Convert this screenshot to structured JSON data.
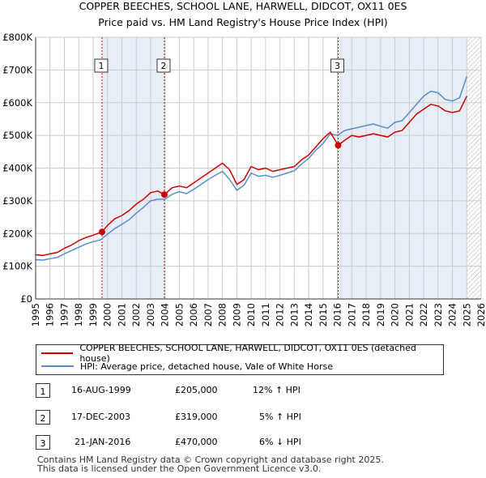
{
  "title_line1": "COPPER BEECHES, SCHOOL LANE, HARWELL, DIDCOT, OX11 0ES",
  "title_line2": "Price paid vs. HM Land Registry's House Price Index (HPI)",
  "colors": {
    "price_line": "#cc0000",
    "hpi_line": "#5b8ccc",
    "shade": "#e8eef8",
    "grid": "#cccccc",
    "marker_line": "#cc0000"
  },
  "legend": {
    "price_label": "COPPER BEECHES, SCHOOL LANE, HARWELL, DIDCOT, OX11 0ES (detached house)",
    "hpi_label": "HPI: Average price, detached house, Vale of White Horse"
  },
  "sales": [
    {
      "num": "1",
      "date": "16-AUG-1999",
      "price": "£205,000",
      "hpi": "12% ↑ HPI"
    },
    {
      "num": "2",
      "date": "17-DEC-2003",
      "price": "£319,000",
      "hpi": "5% ↑ HPI"
    },
    {
      "num": "3",
      "date": "21-JAN-2016",
      "price": "£470,000",
      "hpi": "6% ↓ HPI"
    }
  ],
  "footer_line1": "Contains HM Land Registry data © Crown copyright and database right 2025.",
  "footer_line2": "This data is licensed under the Open Government Licence v3.0.",
  "chart_data": {
    "type": "line",
    "x_range": [
      1995,
      2026
    ],
    "ylim": [
      0,
      800000
    ],
    "y_ticks": [
      0,
      100000,
      200000,
      300000,
      400000,
      500000,
      600000,
      700000,
      800000
    ],
    "y_tick_labels": [
      "£0",
      "£100K",
      "£200K",
      "£300K",
      "£400K",
      "£500K",
      "£600K",
      "£700K",
      "£800K"
    ],
    "x_ticks": [
      1995,
      1996,
      1997,
      1998,
      1999,
      2000,
      2001,
      2002,
      2003,
      2004,
      2005,
      2006,
      2007,
      2008,
      2009,
      2010,
      2011,
      2012,
      2013,
      2014,
      2015,
      2016,
      2017,
      2018,
      2019,
      2020,
      2021,
      2022,
      2023,
      2024,
      2025,
      2026
    ],
    "x_tick_labels": [
      "1995",
      "1996",
      "1997",
      "1998",
      "1999",
      "2000",
      "2001",
      "2002",
      "2003",
      "2004",
      "2005",
      "2006",
      "2007",
      "2008",
      "2009",
      "2010",
      "2011",
      "2012",
      "2013",
      "2014",
      "2015",
      "2016",
      "2017",
      "2018",
      "2019",
      "2020",
      "2021",
      "2022",
      "2023",
      "2024",
      "2025",
      "2026"
    ],
    "shaded_periods": [
      [
        1999.62,
        2003.96
      ],
      [
        2016.05,
        2025.0
      ]
    ],
    "future_hatch_from": 2025.0,
    "sale_points": [
      {
        "label": "1",
        "x": 1999.62,
        "y": 205000
      },
      {
        "label": "2",
        "x": 2003.96,
        "y": 319000
      },
      {
        "label": "3",
        "x": 2016.05,
        "y": 470000
      }
    ],
    "series": [
      {
        "name": "COPPER BEECHES, SCHOOL LANE, HARWELL, DIDCOT, OX11 0ES (detached house)",
        "x": [
          1995,
          1995.5,
          1996,
          1996.5,
          1997,
          1997.5,
          1998,
          1998.5,
          1999,
          1999.62,
          2000,
          2000.5,
          2001,
          2001.5,
          2002,
          2002.5,
          2003,
          2003.5,
          2003.96,
          2004.5,
          2005,
          2005.5,
          2006,
          2006.5,
          2007,
          2007.5,
          2008,
          2008.5,
          2009,
          2009.5,
          2010,
          2010.5,
          2011,
          2011.5,
          2012,
          2012.5,
          2013,
          2013.5,
          2014,
          2014.5,
          2015,
          2015.5,
          2016.05,
          2016.5,
          2017,
          2017.5,
          2018,
          2018.5,
          2019,
          2019.5,
          2020,
          2020.5,
          2021,
          2021.5,
          2022,
          2022.5,
          2023,
          2023.5,
          2024,
          2024.5,
          2025
        ],
        "y": [
          135000,
          133000,
          138000,
          142000,
          155000,
          165000,
          178000,
          188000,
          195000,
          205000,
          225000,
          245000,
          255000,
          270000,
          290000,
          305000,
          325000,
          330000,
          319000,
          340000,
          345000,
          340000,
          355000,
          370000,
          385000,
          400000,
          415000,
          395000,
          350000,
          365000,
          405000,
          395000,
          400000,
          390000,
          395000,
          400000,
          405000,
          425000,
          440000,
          465000,
          490000,
          510000,
          470000,
          485000,
          500000,
          495000,
          500000,
          505000,
          500000,
          495000,
          510000,
          515000,
          540000,
          565000,
          580000,
          595000,
          590000,
          575000,
          570000,
          575000,
          620000
        ]
      },
      {
        "name": "HPI: Average price, detached house, Vale of White Horse",
        "x": [
          1995,
          1995.5,
          1996,
          1996.5,
          1997,
          1997.5,
          1998,
          1998.5,
          1999,
          1999.5,
          2000,
          2000.5,
          2001,
          2001.5,
          2002,
          2002.5,
          2003,
          2003.5,
          2004,
          2004.5,
          2005,
          2005.5,
          2006,
          2006.5,
          2007,
          2007.5,
          2008,
          2008.5,
          2009,
          2009.5,
          2010,
          2010.5,
          2011,
          2011.5,
          2012,
          2012.5,
          2013,
          2013.5,
          2014,
          2014.5,
          2015,
          2015.5,
          2016,
          2016.5,
          2017,
          2017.5,
          2018,
          2018.5,
          2019,
          2019.5,
          2020,
          2020.5,
          2021,
          2021.5,
          2022,
          2022.5,
          2023,
          2023.5,
          2024,
          2024.5,
          2025
        ],
        "y": [
          120000,
          119000,
          123000,
          127000,
          138000,
          148000,
          158000,
          168000,
          175000,
          180000,
          198000,
          215000,
          228000,
          242000,
          262000,
          280000,
          300000,
          305000,
          305000,
          320000,
          328000,
          322000,
          335000,
          350000,
          365000,
          378000,
          390000,
          365000,
          332000,
          348000,
          385000,
          375000,
          378000,
          372000,
          378000,
          385000,
          392000,
          412000,
          430000,
          455000,
          475000,
          505000,
          500000,
          515000,
          520000,
          525000,
          530000,
          535000,
          528000,
          522000,
          540000,
          545000,
          570000,
          595000,
          620000,
          635000,
          630000,
          610000,
          605000,
          615000,
          680000
        ]
      }
    ]
  }
}
